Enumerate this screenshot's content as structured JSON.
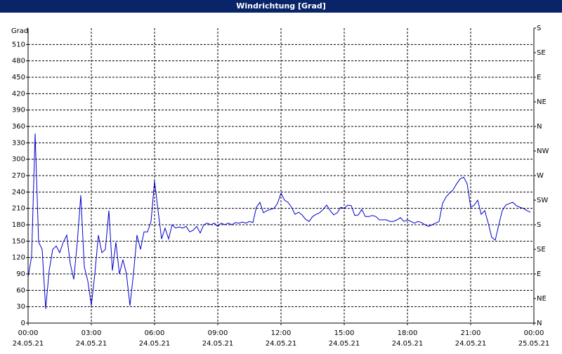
{
  "chart_data": {
    "type": "line",
    "title": "Windrichtung [Grad]",
    "ylabel": "Grad",
    "x": [
      0,
      10,
      20,
      30,
      40,
      50,
      60,
      70,
      80,
      90,
      100,
      110,
      120,
      130,
      140,
      150,
      160,
      170,
      180,
      190,
      200,
      210,
      220,
      230,
      240,
      250,
      260,
      270,
      280,
      290,
      300,
      310,
      320,
      330,
      340,
      350,
      360,
      370,
      380,
      390,
      400,
      410,
      420,
      430,
      440,
      450,
      460,
      470,
      480,
      490,
      500,
      510,
      520,
      530,
      540,
      550,
      560,
      570,
      580,
      590,
      600,
      610,
      620,
      630,
      640,
      650,
      660,
      670,
      680,
      690,
      700,
      710,
      720,
      730,
      740,
      750,
      760,
      770,
      780,
      790,
      800,
      810,
      820,
      830,
      840,
      850,
      860,
      870,
      880,
      890,
      900,
      910,
      920,
      930,
      940,
      950,
      960,
      970,
      980,
      990,
      1000,
      1010,
      1020,
      1030,
      1040,
      1050,
      1060,
      1070,
      1080,
      1090,
      1100,
      1110,
      1120,
      1130,
      1140,
      1150,
      1160,
      1170,
      1180,
      1190,
      1200,
      1210,
      1220,
      1230,
      1240,
      1250,
      1260,
      1270,
      1280,
      1290,
      1300,
      1310,
      1320,
      1330,
      1340,
      1350,
      1360,
      1370,
      1380,
      1390,
      1400,
      1410,
      1420,
      1430
    ],
    "values": [
      84,
      122,
      347,
      148,
      135,
      26,
      96,
      135,
      141,
      129,
      148,
      161,
      109,
      80,
      148,
      234,
      103,
      77,
      32,
      90,
      161,
      129,
      135,
      206,
      96,
      148,
      90,
      116,
      90,
      32,
      90,
      161,
      135,
      167,
      167,
      186,
      260,
      206,
      154,
      174,
      154,
      180,
      174,
      176,
      174,
      177,
      167,
      170,
      177,
      165,
      180,
      183,
      180,
      183,
      177,
      183,
      180,
      183,
      180,
      184,
      183,
      185,
      183,
      186,
      184,
      212,
      221,
      202,
      206,
      208,
      210,
      219,
      238,
      225,
      221,
      212,
      199,
      203,
      198,
      190,
      186,
      195,
      199,
      202,
      208,
      216,
      206,
      198,
      202,
      212,
      210,
      216,
      215,
      197,
      198,
      208,
      195,
      195,
      197,
      195,
      189,
      189,
      189,
      186,
      186,
      189,
      193,
      186,
      189,
      186,
      183,
      186,
      184,
      180,
      177,
      180,
      183,
      186,
      219,
      231,
      238,
      244,
      255,
      264,
      267,
      255,
      212,
      216,
      225,
      199,
      206,
      183,
      157,
      152,
      180,
      206,
      216,
      219,
      221,
      215,
      212,
      210,
      206,
      203
    ],
    "color": "#0000cc",
    "xlim": [
      0,
      1440
    ],
    "xticks": [
      {
        "value": 0,
        "label": "00:00"
      },
      {
        "value": 180,
        "label": "03:00"
      },
      {
        "value": 360,
        "label": "06:00"
      },
      {
        "value": 540,
        "label": "09:00"
      },
      {
        "value": 720,
        "label": "12:00"
      },
      {
        "value": 900,
        "label": "15:00"
      },
      {
        "value": 1080,
        "label": "18:00"
      },
      {
        "value": 1260,
        "label": "21:00"
      },
      {
        "value": 1440,
        "label": "00:00"
      }
    ],
    "xtick_dates": [
      "24.05.21",
      "24.05.21",
      "24.05.21",
      "24.05.21",
      "24.05.21",
      "24.05.21",
      "24.05.21",
      "24.05.21",
      "25.05.21"
    ],
    "ylim": [
      0,
      540
    ],
    "yticks": [
      0,
      30,
      60,
      90,
      120,
      150,
      180,
      210,
      240,
      270,
      300,
      330,
      360,
      390,
      420,
      450,
      480,
      510
    ],
    "y2lim": [
      0,
      540
    ],
    "y2ticks": [
      {
        "value": 0,
        "label": "N"
      },
      {
        "value": 45,
        "label": "NE"
      },
      {
        "value": 90,
        "label": "E"
      },
      {
        "value": 135,
        "label": "SE"
      },
      {
        "value": 180,
        "label": "S"
      },
      {
        "value": 225,
        "label": "SW"
      },
      {
        "value": 270,
        "label": "W"
      },
      {
        "value": 315,
        "label": "NW"
      },
      {
        "value": 360,
        "label": "N"
      },
      {
        "value": 405,
        "label": "NE"
      },
      {
        "value": 450,
        "label": "E"
      },
      {
        "value": 495,
        "label": "SE"
      },
      {
        "value": 540,
        "label": "S"
      }
    ],
    "grid": true
  }
}
